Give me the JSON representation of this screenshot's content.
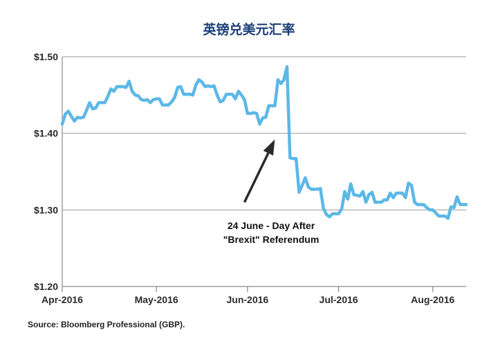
{
  "chart_data": {
    "type": "line",
    "title": "英镑兑美元汇率",
    "xlabel": "",
    "ylabel": "",
    "ylim": [
      1.2,
      1.5
    ],
    "y_ticks": [
      1.2,
      1.3,
      1.4,
      1.5
    ],
    "y_tick_labels": [
      "$1.20",
      "$1.30",
      "$1.40",
      "$1.50"
    ],
    "x_ticks": [
      "2016-04-01",
      "2016-05-02",
      "2016-06-01",
      "2016-07-01",
      "2016-08-01"
    ],
    "x_tick_labels": [
      "Apr-2016",
      "May-2016",
      "Jun-2016",
      "Jul-2016",
      "Aug-2016"
    ],
    "grid": true,
    "series": [
      {
        "color": "#5cb8e6",
        "points": [
          [
            "2016-04-01",
            1.412
          ],
          [
            "2016-04-02",
            1.425
          ],
          [
            "2016-04-03",
            1.429
          ],
          [
            "2016-04-04",
            1.422
          ],
          [
            "2016-04-05",
            1.416
          ],
          [
            "2016-04-06",
            1.421
          ],
          [
            "2016-04-07",
            1.42
          ],
          [
            "2016-04-08",
            1.421
          ],
          [
            "2016-04-09",
            1.43
          ],
          [
            "2016-04-10",
            1.44
          ],
          [
            "2016-04-11",
            1.432
          ],
          [
            "2016-04-12",
            1.433
          ],
          [
            "2016-04-13",
            1.44
          ],
          [
            "2016-04-14",
            1.44
          ],
          [
            "2016-04-15",
            1.44
          ],
          [
            "2016-04-16",
            1.448
          ],
          [
            "2016-04-17",
            1.458
          ],
          [
            "2016-04-18",
            1.455
          ],
          [
            "2016-04-19",
            1.461
          ],
          [
            "2016-04-20",
            1.461
          ],
          [
            "2016-04-21",
            1.461
          ],
          [
            "2016-04-22",
            1.46
          ],
          [
            "2016-04-23",
            1.468
          ],
          [
            "2016-04-24",
            1.455
          ],
          [
            "2016-04-25",
            1.45
          ],
          [
            "2016-04-26",
            1.449
          ],
          [
            "2016-04-27",
            1.444
          ],
          [
            "2016-04-28",
            1.443
          ],
          [
            "2016-04-29",
            1.444
          ],
          [
            "2016-04-30",
            1.44
          ],
          [
            "2016-05-01",
            1.444
          ],
          [
            "2016-05-02",
            1.445
          ],
          [
            "2016-05-03",
            1.445
          ],
          [
            "2016-05-04",
            1.437
          ],
          [
            "2016-05-05",
            1.437
          ],
          [
            "2016-05-06",
            1.437
          ],
          [
            "2016-05-07",
            1.441
          ],
          [
            "2016-05-08",
            1.447
          ],
          [
            "2016-05-09",
            1.46
          ],
          [
            "2016-05-10",
            1.461
          ],
          [
            "2016-05-11",
            1.451
          ],
          [
            "2016-05-12",
            1.451
          ],
          [
            "2016-05-13",
            1.451
          ],
          [
            "2016-05-14",
            1.45
          ],
          [
            "2016-05-15",
            1.463
          ],
          [
            "2016-05-16",
            1.47
          ],
          [
            "2016-05-17",
            1.467
          ],
          [
            "2016-05-18",
            1.461
          ],
          [
            "2016-05-19",
            1.462
          ],
          [
            "2016-05-20",
            1.461
          ],
          [
            "2016-05-21",
            1.462
          ],
          [
            "2016-05-22",
            1.45
          ],
          [
            "2016-05-23",
            1.441
          ],
          [
            "2016-05-24",
            1.443
          ],
          [
            "2016-05-25",
            1.451
          ],
          [
            "2016-05-26",
            1.451
          ],
          [
            "2016-05-27",
            1.451
          ],
          [
            "2016-05-28",
            1.445
          ],
          [
            "2016-05-29",
            1.455
          ],
          [
            "2016-05-30",
            1.45
          ],
          [
            "2016-05-31",
            1.444
          ],
          [
            "2016-06-01",
            1.426
          ],
          [
            "2016-06-02",
            1.426
          ],
          [
            "2016-06-03",
            1.427
          ],
          [
            "2016-06-04",
            1.426
          ],
          [
            "2016-06-05",
            1.412
          ],
          [
            "2016-06-06",
            1.42
          ],
          [
            "2016-06-07",
            1.421
          ],
          [
            "2016-06-08",
            1.436
          ],
          [
            "2016-06-09",
            1.436
          ],
          [
            "2016-06-10",
            1.436
          ],
          [
            "2016-06-11",
            1.47
          ],
          [
            "2016-06-12",
            1.465
          ],
          [
            "2016-06-13",
            1.47
          ],
          [
            "2016-06-14",
            1.487
          ],
          [
            "2016-06-15",
            1.368
          ],
          [
            "2016-06-16",
            1.367
          ],
          [
            "2016-06-17",
            1.367
          ],
          [
            "2016-06-18",
            1.323
          ],
          [
            "2016-06-19",
            1.332
          ],
          [
            "2016-06-20",
            1.342
          ],
          [
            "2016-06-21",
            1.33
          ],
          [
            "2016-06-22",
            1.327
          ],
          [
            "2016-06-23",
            1.327
          ],
          [
            "2016-06-24",
            1.327
          ],
          [
            "2016-06-25",
            1.328
          ],
          [
            "2016-06-26",
            1.302
          ],
          [
            "2016-06-27",
            1.294
          ],
          [
            "2016-06-28",
            1.291
          ],
          [
            "2016-06-29",
            1.295
          ],
          [
            "2016-06-30",
            1.295
          ],
          [
            "2016-07-01",
            1.295
          ],
          [
            "2016-07-02",
            1.301
          ],
          [
            "2016-07-03",
            1.324
          ],
          [
            "2016-07-04",
            1.314
          ],
          [
            "2016-07-05",
            1.334
          ],
          [
            "2016-07-06",
            1.32
          ],
          [
            "2016-07-07",
            1.319
          ],
          [
            "2016-07-08",
            1.318
          ],
          [
            "2016-07-09",
            1.324
          ],
          [
            "2016-07-10",
            1.31
          ],
          [
            "2016-07-11",
            1.32
          ],
          [
            "2016-07-12",
            1.323
          ],
          [
            "2016-07-13",
            1.31
          ],
          [
            "2016-07-14",
            1.31
          ],
          [
            "2016-07-15",
            1.31
          ],
          [
            "2016-07-16",
            1.313
          ],
          [
            "2016-07-17",
            1.313
          ],
          [
            "2016-07-18",
            1.322
          ],
          [
            "2016-07-19",
            1.316
          ],
          [
            "2016-07-20",
            1.322
          ],
          [
            "2016-07-21",
            1.322
          ],
          [
            "2016-07-22",
            1.322
          ],
          [
            "2016-07-23",
            1.316
          ],
          [
            "2016-07-24",
            1.335
          ],
          [
            "2016-07-25",
            1.332
          ],
          [
            "2016-07-26",
            1.31
          ],
          [
            "2016-07-27",
            1.307
          ],
          [
            "2016-07-28",
            1.307
          ],
          [
            "2016-07-29",
            1.307
          ],
          [
            "2016-07-30",
            1.303
          ],
          [
            "2016-07-31",
            1.3
          ],
          [
            "2016-08-01",
            1.3
          ],
          [
            "2016-08-02",
            1.296
          ],
          [
            "2016-08-03",
            1.292
          ],
          [
            "2016-08-04",
            1.292
          ],
          [
            "2016-08-05",
            1.292
          ],
          [
            "2016-08-06",
            1.289
          ],
          [
            "2016-08-07",
            1.304
          ],
          [
            "2016-08-08",
            1.303
          ],
          [
            "2016-08-09",
            1.317
          ],
          [
            "2016-08-10",
            1.307
          ],
          [
            "2016-08-11",
            1.307
          ],
          [
            "2016-08-12",
            1.307
          ]
        ]
      }
    ],
    "annotations": [
      {
        "lines": [
          "24 June - Day After",
          "\"Brexit\" Referendum"
        ],
        "arrow_from": [
          "2016-05-31",
          1.31
        ],
        "arrow_to": [
          "2016-06-10",
          1.392
        ]
      }
    ]
  },
  "source": "Source: Bloomberg Professional (GBP)."
}
